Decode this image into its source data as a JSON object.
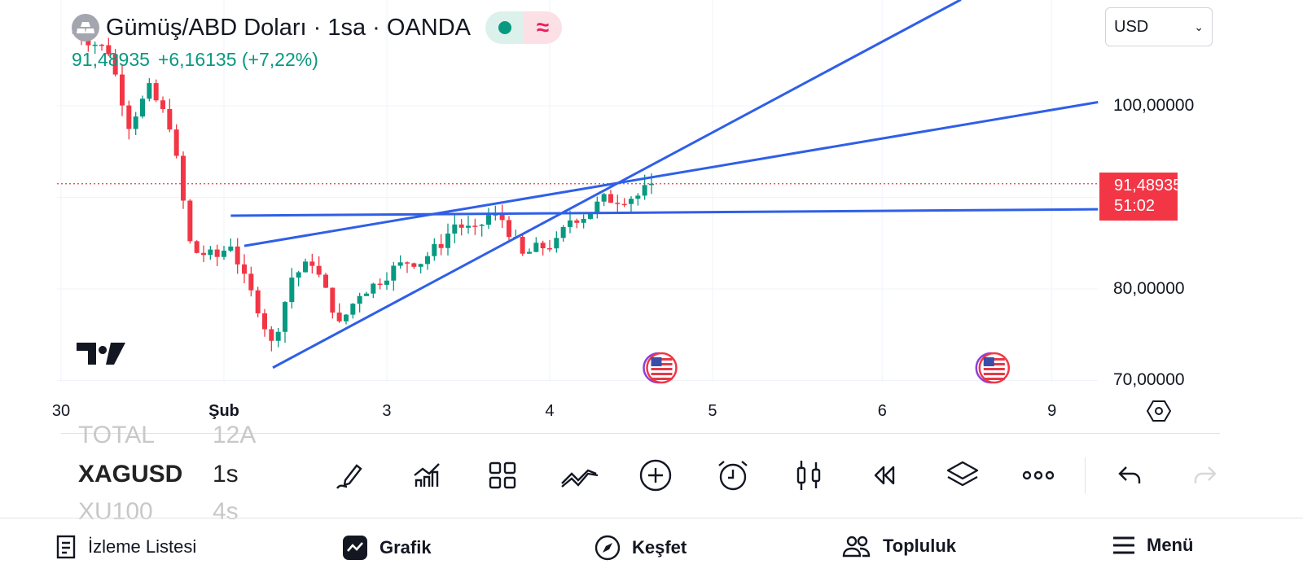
{
  "header": {
    "title": "Gümüş/ABD Doları · 1sa · OANDA",
    "last_price": "91,48935",
    "change": "+6,16135 (+7,22%)",
    "market_status_icon": "market-open-dot",
    "indicator_icon": "approx-icon"
  },
  "currency_select": {
    "value": "USD"
  },
  "price_scale": {
    "ticks": [
      {
        "label": "100,00000",
        "price": 100
      },
      {
        "label": "80,00000",
        "price": 80
      },
      {
        "label": "70,00000",
        "price": 70
      }
    ],
    "current_price": "91,48935",
    "countdown": "51:02"
  },
  "time_scale": {
    "ticks": [
      {
        "label": "30",
        "hour": -24
      },
      {
        "label": "Şub",
        "hour": 0
      },
      {
        "label": "3",
        "hour": 24
      },
      {
        "label": "4",
        "hour": 48
      },
      {
        "label": "5",
        "hour": 72
      },
      {
        "label": "6",
        "hour": 97
      },
      {
        "label": "9",
        "hour": 122
      }
    ]
  },
  "colors": {
    "up": "#089981",
    "down": "#f23645",
    "drawing": "#2f5fe8",
    "grid": "#f0f3fa"
  },
  "chart_data": {
    "type": "candlestick",
    "current_price": 91.48935,
    "close_keyframes": [
      [
        -22,
        108
      ],
      [
        -17,
        106
      ],
      [
        -14,
        98
      ],
      [
        -11,
        101.8
      ],
      [
        -8,
        98
      ],
      [
        -7,
        94
      ],
      [
        -5,
        85
      ],
      [
        -4,
        84
      ],
      [
        -1,
        83.5
      ],
      [
        1,
        85
      ],
      [
        3,
        81
      ],
      [
        5,
        78
      ],
      [
        7,
        74
      ],
      [
        8,
        76
      ],
      [
        10,
        81.3
      ],
      [
        13,
        83
      ],
      [
        16,
        78
      ],
      [
        17,
        76
      ],
      [
        20,
        79.6
      ],
      [
        22,
        80.4
      ],
      [
        25,
        82.2
      ],
      [
        27,
        83
      ],
      [
        29,
        83
      ],
      [
        32,
        85
      ],
      [
        34,
        87.1
      ],
      [
        37,
        86.2
      ],
      [
        39,
        88
      ],
      [
        41,
        87.6
      ],
      [
        43,
        85
      ],
      [
        44,
        83.6
      ],
      [
        46,
        84.4
      ],
      [
        49,
        85
      ],
      [
        51,
        87.6
      ],
      [
        53,
        88
      ],
      [
        56,
        89.8
      ],
      [
        58,
        89.8
      ],
      [
        61,
        90.2
      ],
      [
        63,
        91.4
      ]
    ],
    "trendlines": [
      [
        [
          7.2,
          71.4
        ],
        [
          108.6,
          111.6
        ]
      ],
      [
        [
          3,
          84.7
        ],
        [
          128.8,
          100.4
        ]
      ],
      [
        [
          1,
          88
        ],
        [
          128.8,
          88.7
        ]
      ]
    ],
    "events": [
      {
        "hour": 64.5,
        "icon": "us-flag-icon"
      },
      {
        "hour": 113.5,
        "icon": "us-flag-icon"
      }
    ]
  },
  "symbol_wheel": {
    "prev": [
      "TOTAL",
      "12A"
    ],
    "current": [
      "XAGUSD",
      "1s"
    ],
    "next": [
      "XU100",
      "4s"
    ]
  },
  "toolbar": [
    "draw",
    "indicators",
    "layouts",
    "patterns",
    "add",
    "alert",
    "chart-type",
    "replay",
    "layers",
    "more",
    "undo",
    "redo"
  ],
  "tabs": [
    {
      "label": "İzleme Listesi"
    },
    {
      "label": "Grafik"
    },
    {
      "label": "Keşfet"
    },
    {
      "label": "Topluluk"
    },
    {
      "label": "Menü"
    }
  ]
}
